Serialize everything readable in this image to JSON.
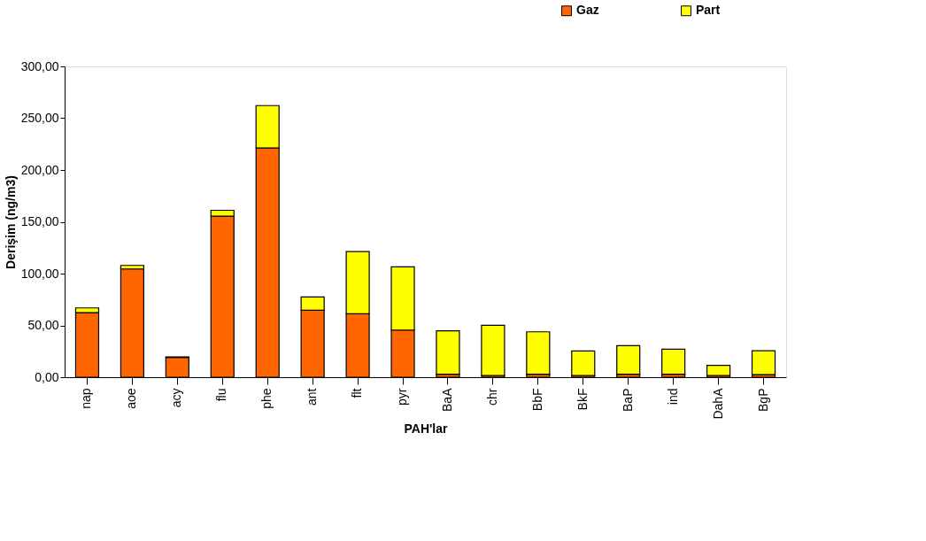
{
  "chart_data": {
    "type": "bar",
    "stacked": true,
    "xlabel": "PAH'lar",
    "ylabel": "Derişim (ng/m3)",
    "categories": [
      "nap",
      "aoe",
      "acy",
      "flu",
      "phe",
      "ant",
      "flt",
      "pyr",
      "BaA",
      "chr",
      "BbF",
      "BkF",
      "BaP",
      "ind",
      "DahA",
      "BgP"
    ],
    "series": [
      {
        "name": "Gaz",
        "color": "#ff6600",
        "values": [
          62.3,
          104.5,
          19.1,
          155.4,
          221.2,
          64.6,
          61.2,
          45.5,
          2.8,
          1.7,
          2.8,
          1.7,
          2.8,
          2.8,
          1.7,
          2.5
        ]
      },
      {
        "name": "Part",
        "color": "#ffff00",
        "values": [
          4.6,
          3.4,
          0.5,
          5.7,
          41,
          12.8,
          60.1,
          61,
          41.9,
          48.4,
          41,
          23.6,
          27.7,
          24.2,
          9.7,
          23
        ]
      }
    ],
    "ylim": [
      0,
      300
    ],
    "yticks": [
      {
        "value": 0,
        "label": "0,00"
      },
      {
        "value": 50,
        "label": "50,00"
      },
      {
        "value": 100,
        "label": "100,00"
      },
      {
        "value": 150,
        "label": "150,00"
      },
      {
        "value": 200,
        "label": "200,00"
      },
      {
        "value": 250,
        "label": "250,00"
      },
      {
        "value": 300,
        "label": "300,00"
      }
    ],
    "grid": false,
    "legend": "top right"
  }
}
